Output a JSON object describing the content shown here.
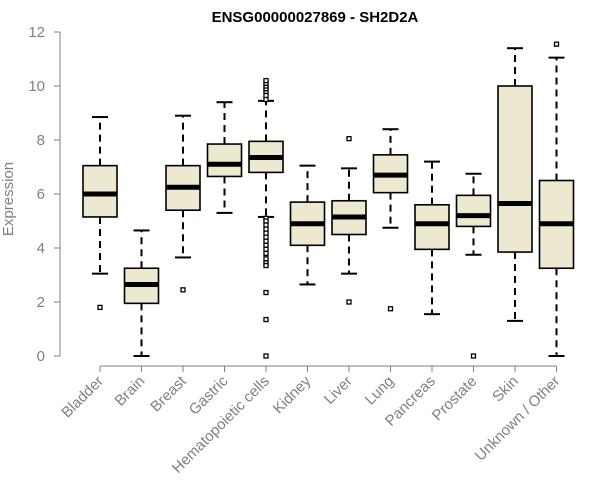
{
  "chart_data": {
    "type": "box",
    "title": "ENSG00000027869 - SH2D2A",
    "xlabel": "",
    "ylabel": "Expression",
    "ylim": [
      0,
      12
    ],
    "yticks": [
      0,
      2,
      4,
      6,
      8,
      10,
      12
    ],
    "grid": false,
    "legend": "none",
    "box_fill": "#ede8d0",
    "box_stroke": "#000000",
    "categories": [
      "Bladder",
      "Brain",
      "Breast",
      "Gastric",
      "Hematopoietic cells",
      "Kidney",
      "Liver",
      "Lung",
      "Pancreas",
      "Prostate",
      "Skin",
      "Unknown / Other"
    ],
    "boxes": [
      {
        "category": "Bladder",
        "whisker_low": 3.05,
        "q1": 5.15,
        "median": 6.0,
        "q3": 7.05,
        "whisker_high": 8.85,
        "outliers": [
          1.8
        ]
      },
      {
        "category": "Brain",
        "whisker_low": 0.0,
        "q1": 1.95,
        "median": 2.65,
        "q3": 3.25,
        "whisker_high": 4.65,
        "outliers": []
      },
      {
        "category": "Breast",
        "whisker_low": 3.65,
        "q1": 5.4,
        "median": 6.25,
        "q3": 7.05,
        "whisker_high": 8.9,
        "outliers": [
          2.45
        ]
      },
      {
        "category": "Gastric",
        "whisker_low": 5.3,
        "q1": 6.65,
        "median": 7.1,
        "q3": 7.85,
        "whisker_high": 9.4,
        "outliers": []
      },
      {
        "category": "Hematopoietic cells",
        "whisker_low": 5.15,
        "q1": 6.8,
        "median": 7.35,
        "q3": 7.95,
        "whisker_high": 9.45,
        "outliers": [
          9.5,
          9.65,
          9.8,
          9.9,
          10.0,
          10.1,
          10.2,
          5.1,
          5.0,
          4.85,
          4.7,
          4.55,
          4.4,
          4.25,
          4.1,
          3.95,
          3.8,
          3.6,
          3.45,
          3.35,
          2.35,
          1.35,
          0.0
        ]
      },
      {
        "category": "Kidney",
        "whisker_low": 2.65,
        "q1": 4.1,
        "median": 4.9,
        "q3": 5.7,
        "whisker_high": 7.05,
        "outliers": []
      },
      {
        "category": "Liver",
        "whisker_low": 3.05,
        "q1": 4.5,
        "median": 5.15,
        "q3": 5.75,
        "whisker_high": 6.95,
        "outliers": [
          8.05,
          2.0
        ]
      },
      {
        "category": "Lung",
        "whisker_low": 4.75,
        "q1": 6.05,
        "median": 6.7,
        "q3": 7.45,
        "whisker_high": 8.4,
        "outliers": [
          1.75
        ]
      },
      {
        "category": "Pancreas",
        "whisker_low": 1.55,
        "q1": 3.95,
        "median": 4.9,
        "q3": 5.6,
        "whisker_high": 7.2,
        "outliers": []
      },
      {
        "category": "Prostate",
        "whisker_low": 3.75,
        "q1": 4.8,
        "median": 5.2,
        "q3": 5.95,
        "whisker_high": 6.75,
        "outliers": [
          0.0
        ]
      },
      {
        "category": "Skin",
        "whisker_low": 1.3,
        "q1": 3.85,
        "median": 5.65,
        "q3": 10.0,
        "whisker_high": 11.4,
        "outliers": []
      },
      {
        "category": "Unknown / Other",
        "whisker_low": 0.0,
        "q1": 3.25,
        "median": 4.9,
        "q3": 6.5,
        "whisker_high": 11.05,
        "outliers": [
          11.55
        ]
      }
    ]
  }
}
